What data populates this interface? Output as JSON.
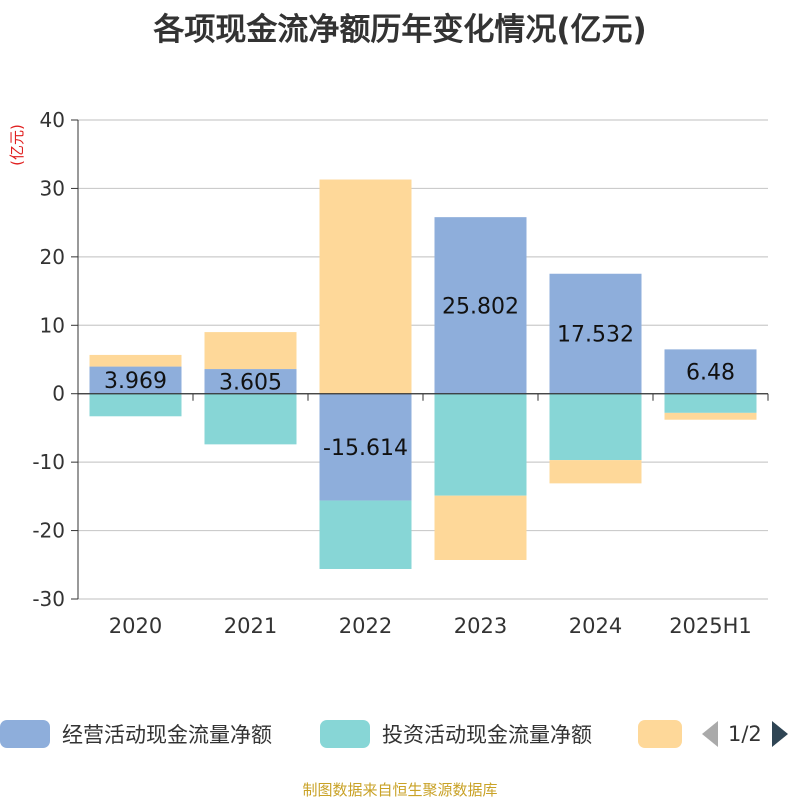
{
  "title": "各项现金流净额历年变化情况(亿元)",
  "source": "制图数据来自恒生聚源数据库",
  "pager": {
    "text": "1/2"
  },
  "colors": {
    "operating": "#8eaedb",
    "investing": "#87d6d6",
    "financing": "#fed899"
  },
  "chart_data": {
    "type": "bar",
    "stacked": true,
    "title": "各项现金流净额历年变化情况(亿元)",
    "ylabel": "(亿元)",
    "xlabel": "",
    "ylim": [
      -30,
      40
    ],
    "yticks": [
      40,
      30,
      20,
      10,
      0,
      -10,
      -20,
      -30
    ],
    "grid": true,
    "legend_position": "bottom",
    "categories": [
      "2020",
      "2021",
      "2022",
      "2023",
      "2024",
      "2025H1"
    ],
    "series": [
      {
        "name": "经营活动现金流量净额",
        "values": [
          3.969,
          3.605,
          -15.614,
          25.802,
          17.532,
          6.48
        ],
        "labels": [
          "3.969",
          "3.605",
          "-15.614",
          "25.802",
          "17.532",
          "6.48"
        ]
      },
      {
        "name": "投资活动现金流量净额",
        "values": [
          -3.3,
          -7.4,
          -10.0,
          -14.9,
          -9.7,
          -2.8
        ]
      },
      {
        "name": "",
        "values": [
          1.7,
          5.4,
          31.3,
          -9.4,
          -3.4,
          -1.0
        ]
      }
    ]
  }
}
